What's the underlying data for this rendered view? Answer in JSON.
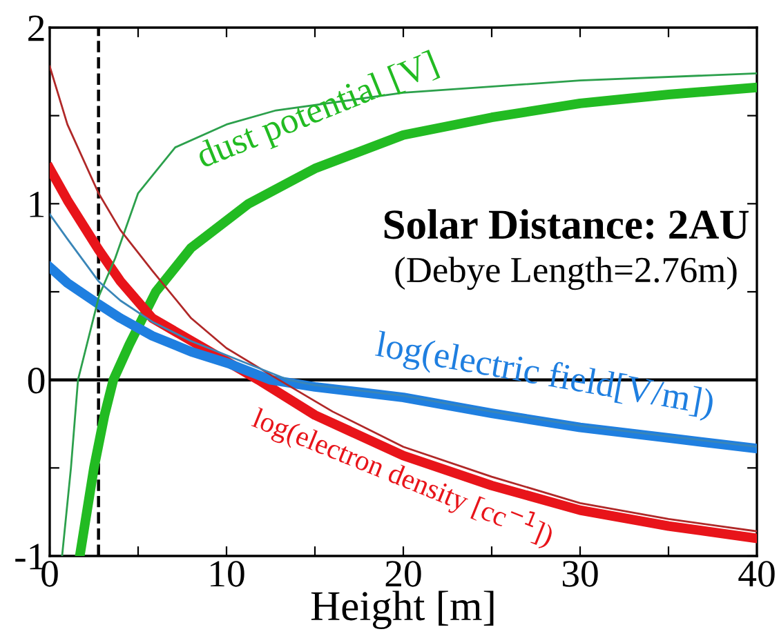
{
  "chart_data": {
    "type": "line",
    "xlabel": "Height [m]",
    "annotations": [
      "Solar Distance: 2AU",
      "(Debye Length=2.76m)"
    ],
    "xlim": [
      0,
      40
    ],
    "ylim": [
      -1,
      2
    ],
    "xticks": [
      0,
      {
        "value": 5,
        "label": null
      },
      10,
      {
        "value": 15,
        "label": null
      },
      20,
      {
        "value": 25,
        "label": null
      },
      30,
      {
        "value": 35,
        "label": null
      },
      40
    ],
    "yticks": [
      -1,
      {
        "value": -0.5,
        "label": null
      },
      0,
      {
        "value": 0.5,
        "label": null
      },
      1,
      {
        "value": 1.5,
        "label": null
      },
      2
    ],
    "grid": false,
    "legend": false,
    "marker": "none",
    "line_style": "solid",
    "ref_lines": [
      {
        "axis": "x",
        "value": 2.76,
        "color": "#000000",
        "line_style": "dashed"
      },
      {
        "axis": "y",
        "value": 0,
        "color": "#000000",
        "line_style": "solid"
      }
    ],
    "series": [
      {
        "color": "#2ca04c",
        "x": [
          0.7,
          1.2,
          1.6,
          2.8,
          3.7,
          5,
          7.1,
          10,
          12.8,
          20,
          30,
          40
        ],
        "values": [
          -1,
          -0.5,
          0,
          0.48,
          0.69,
          1.06,
          1.32,
          1.45,
          1.53,
          1.63,
          1.7,
          1.74
        ]
      },
      {
        "color": "#b02828",
        "x": [
          0,
          1,
          2.76,
          4,
          5.8,
          8,
          10,
          12.8,
          16,
          20,
          25,
          30,
          35,
          40
        ],
        "values": [
          1.78,
          1.45,
          1.06,
          0.85,
          0.62,
          0.35,
          0.18,
          0.01,
          -0.18,
          -0.38,
          -0.55,
          -0.7,
          -0.79,
          -0.86
        ]
      },
      {
        "color": "#3a86b8",
        "x": [
          0,
          1,
          2.76,
          4,
          5.8,
          8,
          10,
          13.5,
          15,
          20,
          25,
          30,
          35,
          40
        ],
        "values": [
          0.94,
          0.8,
          0.56,
          0.45,
          0.33,
          0.22,
          0.14,
          0,
          -0.03,
          -0.09,
          -0.18,
          -0.26,
          -0.32,
          -0.38
        ]
      },
      {
        "name": "dust potential [V]",
        "color": "#22bb22",
        "x": [
          1.7,
          2.5,
          3.1,
          3.6,
          4.5,
          6,
          8,
          11.25,
          15,
          20,
          25,
          30,
          35,
          40
        ],
        "values": [
          -1,
          -0.5,
          -0.2,
          0,
          0.2,
          0.5,
          0.75,
          1.0,
          1.2,
          1.39,
          1.49,
          1.57,
          1.62,
          1.66
        ]
      },
      {
        "name": "log(electron density [cc$^{−1}$])",
        "color": "#e8141a",
        "x": [
          0,
          1,
          2.76,
          4,
          5.8,
          8.9,
          11.8,
          15,
          20,
          25,
          30,
          35,
          40
        ],
        "values": [
          1.2,
          1.02,
          0.74,
          0.56,
          0.35,
          0.17,
          0,
          -0.2,
          -0.43,
          -0.6,
          -0.74,
          -0.83,
          -0.9
        ]
      },
      {
        "name": "log(electric field[V/m])",
        "color": "#1f7fe0",
        "x": [
          0,
          1,
          2.76,
          4,
          5.8,
          8,
          10.2,
          12.5,
          15,
          20,
          25,
          30,
          35,
          40
        ],
        "values": [
          0.64,
          0.55,
          0.43,
          0.35,
          0.25,
          0.16,
          0.09,
          0,
          -0.04,
          -0.1,
          -0.19,
          -0.27,
          -0.33,
          -0.39
        ]
      }
    ]
  }
}
